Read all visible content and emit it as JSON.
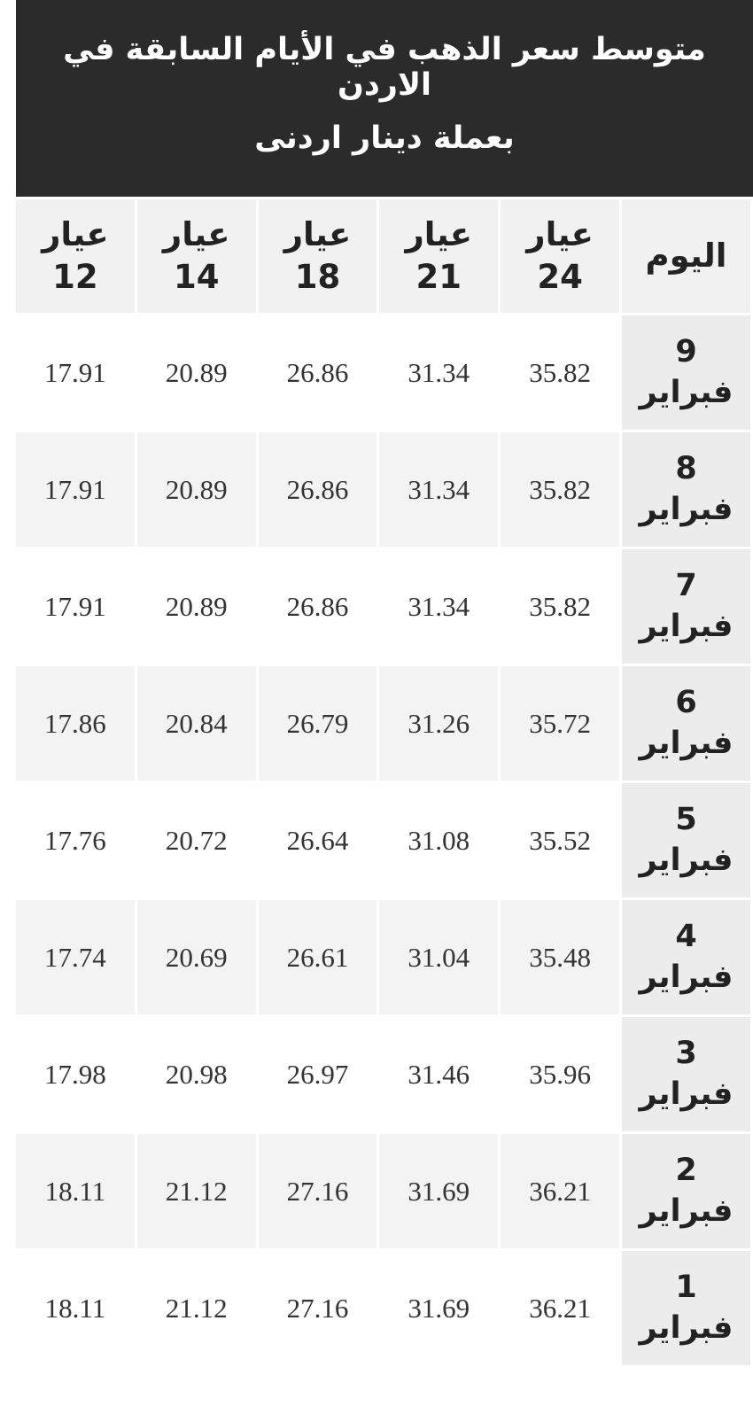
{
  "header": {
    "title": "متوسط سعر الذهب في الأيام السابقة في الاردن",
    "subtitle": "بعملة دينار اردنى"
  },
  "table": {
    "columns": [
      "اليوم",
      "عيار 24",
      "عيار 21",
      "عيار 18",
      "عيار 14",
      "عيار 12"
    ],
    "rows": [
      [
        "9 فبراير",
        "35.82",
        "31.34",
        "26.86",
        "20.89",
        "17.91"
      ],
      [
        "8 فبراير",
        "35.82",
        "31.34",
        "26.86",
        "20.89",
        "17.91"
      ],
      [
        "7 فبراير",
        "35.82",
        "31.34",
        "26.86",
        "20.89",
        "17.91"
      ],
      [
        "6 فبراير",
        "35.72",
        "31.26",
        "26.79",
        "20.84",
        "17.86"
      ],
      [
        "5 فبراير",
        "35.52",
        "31.08",
        "26.64",
        "20.72",
        "17.76"
      ],
      [
        "4 فبراير",
        "35.48",
        "31.04",
        "26.61",
        "20.69",
        "17.74"
      ],
      [
        "3 فبراير",
        "35.96",
        "31.46",
        "26.97",
        "20.98",
        "17.98"
      ],
      [
        "2 فبراير",
        "36.21",
        "31.69",
        "27.16",
        "21.12",
        "18.11"
      ],
      [
        "1 فبراير",
        "36.21",
        "31.69",
        "27.16",
        "21.12",
        "18.11"
      ]
    ]
  }
}
